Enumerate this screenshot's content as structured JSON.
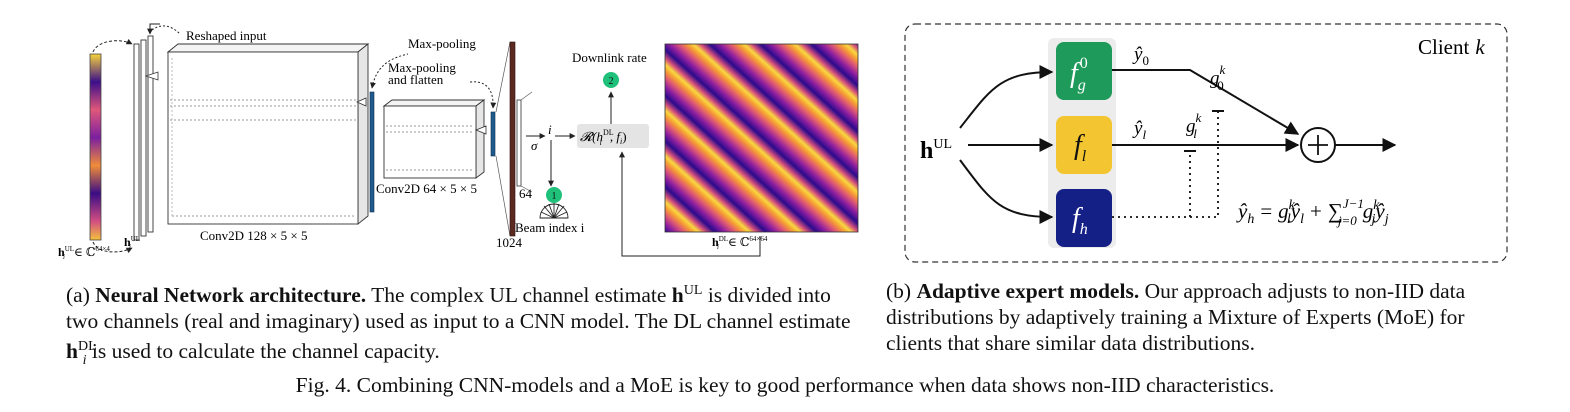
{
  "left_figure": {
    "labels": {
      "reshaped_input": "Reshaped input",
      "max_pooling": "Max-pooling",
      "max_pooling_flatten_1": "Max-pooling",
      "max_pooling_flatten_2": "and flatten",
      "downlink_rate": "Downlink rate",
      "conv2d_128": "Conv2D 128 × 5 × 5",
      "conv2d_64": "Conv2D 64 × 5 × 5",
      "dim_64": "64",
      "dim_1024": "1024",
      "sigma": "σ",
      "index_i": "i",
      "rate_fn": "𝓡(h",
      "rate_fn_sup": "DL",
      "rate_fn_sub": "i",
      "rate_fn_tail": ", f",
      "rate_fn_tail_sub": "i",
      "rate_fn_close": ")",
      "beam_index": "Beam index i",
      "badge_1": "1",
      "badge_2": "2",
      "h_ul_input": "h",
      "h_ul_input_sub": "i",
      "h_ul_input_sup": "UL",
      "h_ul_input_tail": "∈ ℂ",
      "h_ul_input_tail_sup": "64×4",
      "h_ul_small": "h",
      "h_ul_small_sub": "i",
      "h_ul_small_sup": "UL",
      "h_dl": "h",
      "h_dl_sub": "i",
      "h_dl_sup": "DL",
      "h_dl_tail": "∈ ℂ",
      "h_dl_tail_sup": "64×64"
    }
  },
  "right_figure": {
    "client_label": "Client",
    "client_var": "k",
    "input": "h",
    "input_sup": "UL",
    "experts": [
      {
        "id": "f_g0",
        "text": "f",
        "sub": "g",
        "sup": "0",
        "color": "#1e9a5a"
      },
      {
        "id": "f_l",
        "text": "f",
        "sub": "l",
        "color": "#f3c631"
      },
      {
        "id": "f_h",
        "text": "f",
        "sub": "h",
        "color": "#142086"
      }
    ],
    "y0": "ŷ",
    "y0_sub": "0",
    "yl": "ŷ",
    "yl_sub": "l",
    "g0": "g",
    "g0_sub": "0",
    "g0_sup": "k",
    "gl": "g",
    "gl_sub": "l",
    "gl_sup": "k",
    "sum_symbol": "+",
    "equation": {
      "lhs": "ŷ",
      "lhs_sub": "h",
      "eq": "=",
      "t1": "g",
      "t1_sub": "l",
      "t1_sup": "k",
      "t1y": "ŷ",
      "t1y_sub": "l",
      "plus": "+",
      "sum": "∑",
      "sum_sup": "J−1",
      "sum_sub": "j=0",
      "t2": "g",
      "t2_sub": "j",
      "t2_sup": "k",
      "t2y": "ŷ",
      "t2y_sub": "j"
    }
  },
  "captions": {
    "a_prefix": "(a) ",
    "a_title": "Neural Network architecture.",
    "a_text1": " The complex UL channel estimate ",
    "a_h": "h",
    "a_h_sup": "UL",
    "a_text2": " is divided into two channels (real and imaginary) used as input to a CNN model. The DL channel estimate ",
    "a_h2": "h",
    "a_h2_sub": "i",
    "a_h2_sup": "DL",
    "a_text3": " is used to calculate the channel capacity.",
    "b_prefix": "(b) ",
    "b_title": "Adaptive expert models.",
    "b_text": " Our approach adjusts to non-IID data distributions by adaptively training a Mixture of Experts (MoE) for clients that share similar data distributions.",
    "fig": "Fig. 4.  Combining CNN-models and a MoE is key to good performance when data shows non-IID characteristics."
  },
  "colors": {
    "badge_green": "#1fc07a",
    "heatmap_low": "#2a0a8c",
    "heatmap_mid": "#d9467a",
    "heatmap_high": "#f9d43f"
  }
}
